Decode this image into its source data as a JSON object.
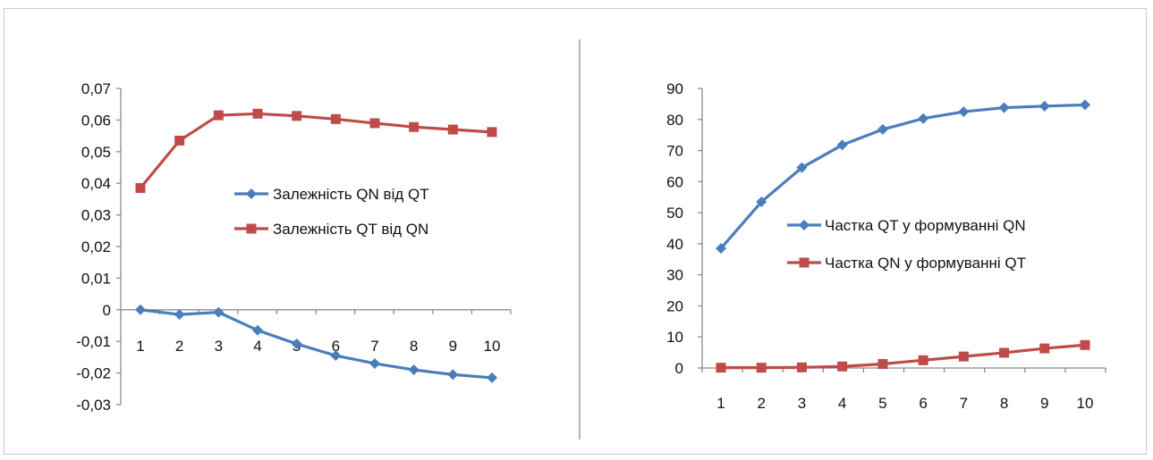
{
  "chart_data": [
    {
      "type": "line",
      "x": [
        "1",
        "2",
        "3",
        "4",
        "5",
        "6",
        "7",
        "8",
        "9",
        "10"
      ],
      "ylim": [
        -0.03,
        0.07
      ],
      "y_ticks": [
        "0,07",
        "0,06",
        "0,05",
        "0,04",
        "0,03",
        "0,02",
        "0,01",
        "0",
        "-0,01",
        "-0,02",
        "-0,03"
      ],
      "grid": false,
      "legend_position": "center-right",
      "series": [
        {
          "name": "Залежність QN від QT",
          "color": "#4a7ebb",
          "marker": "diamond",
          "values": [
            0.0,
            -0.0015,
            -0.0008,
            -0.0065,
            -0.0108,
            -0.0145,
            -0.017,
            -0.019,
            -0.0205,
            -0.0215
          ]
        },
        {
          "name": "Залежність QT від QN",
          "color": "#be4b48",
          "marker": "square",
          "values": [
            0.0385,
            0.0535,
            0.0615,
            0.062,
            0.0613,
            0.0603,
            0.059,
            0.0578,
            0.057,
            0.0562
          ]
        }
      ]
    },
    {
      "type": "line",
      "x": [
        "1",
        "2",
        "3",
        "4",
        "5",
        "6",
        "7",
        "8",
        "9",
        "10"
      ],
      "ylim": [
        0,
        90
      ],
      "y_ticks": [
        "90",
        "80",
        "70",
        "60",
        "50",
        "40",
        "30",
        "20",
        "10",
        "0"
      ],
      "grid": false,
      "legend_position": "center-right",
      "series": [
        {
          "name": "Частка QT у формуванні QN",
          "color": "#4a7ebb",
          "marker": "diamond",
          "values": [
            38.5,
            53.5,
            64.5,
            71.8,
            76.8,
            80.3,
            82.5,
            83.8,
            84.3,
            84.7
          ]
        },
        {
          "name": "Частка QN  у формуванні QT",
          "color": "#be4b48",
          "marker": "square",
          "values": [
            0.1,
            0.1,
            0.2,
            0.5,
            1.3,
            2.5,
            3.7,
            4.9,
            6.3,
            7.4
          ]
        }
      ]
    }
  ]
}
